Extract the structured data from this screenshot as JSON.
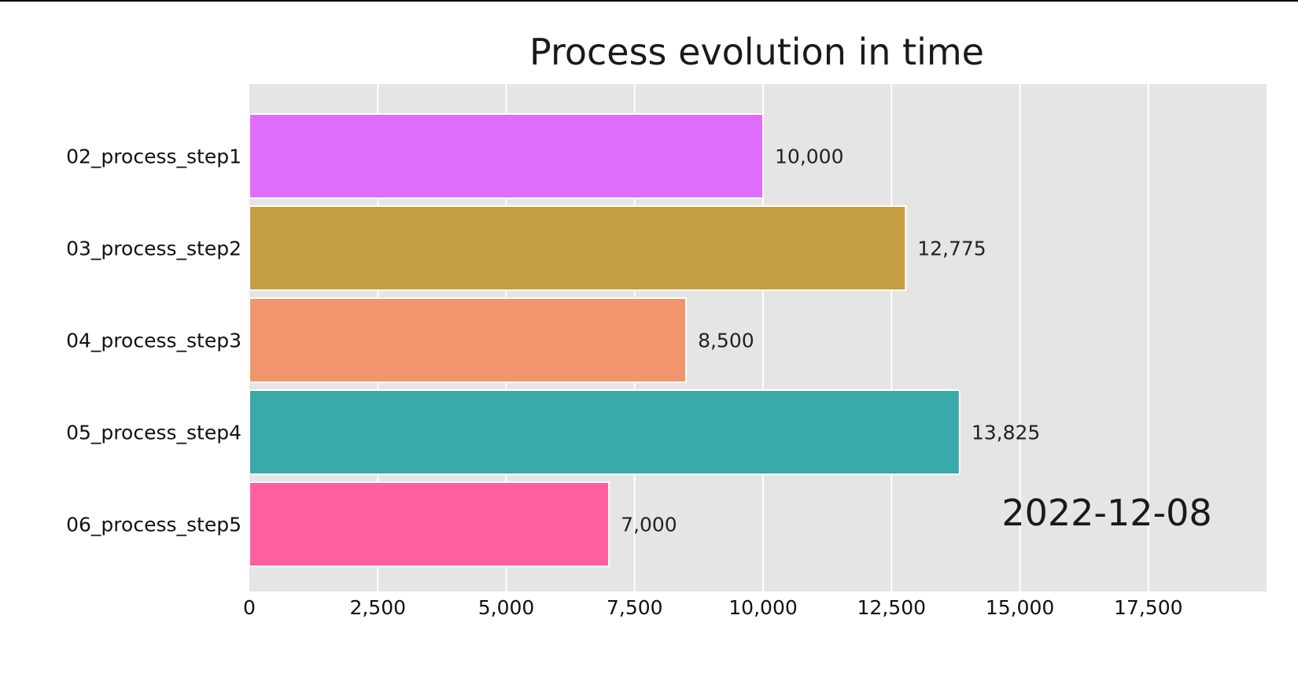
{
  "chart_data": {
    "type": "bar",
    "orientation": "horizontal",
    "title": "Process evolution in time",
    "date_annotation": "2022-12-08",
    "categories": [
      "02_process_step1",
      "03_process_step2",
      "04_process_step3",
      "05_process_step4",
      "06_process_step5"
    ],
    "values": [
      10000,
      12775,
      8500,
      13825,
      7000
    ],
    "value_labels": [
      "10,000",
      "12,775",
      "8,500",
      "13,825",
      "7,000"
    ],
    "bar_colors": [
      "#e06cfc",
      "#c59f42",
      "#f0956d",
      "#3aa9a9",
      "#fd609d"
    ],
    "xlim": [
      0,
      19800
    ],
    "xticks": [
      0,
      2500,
      5000,
      7500,
      10000,
      12500,
      15000,
      17500
    ],
    "xtick_labels": [
      "0",
      "2,500",
      "5,000",
      "7,500",
      "10,000",
      "12,500",
      "15,000",
      "17,500"
    ],
    "grid": true,
    "colors": {
      "plot_background": "#e5e5e5",
      "grid": "#ffffff"
    }
  }
}
